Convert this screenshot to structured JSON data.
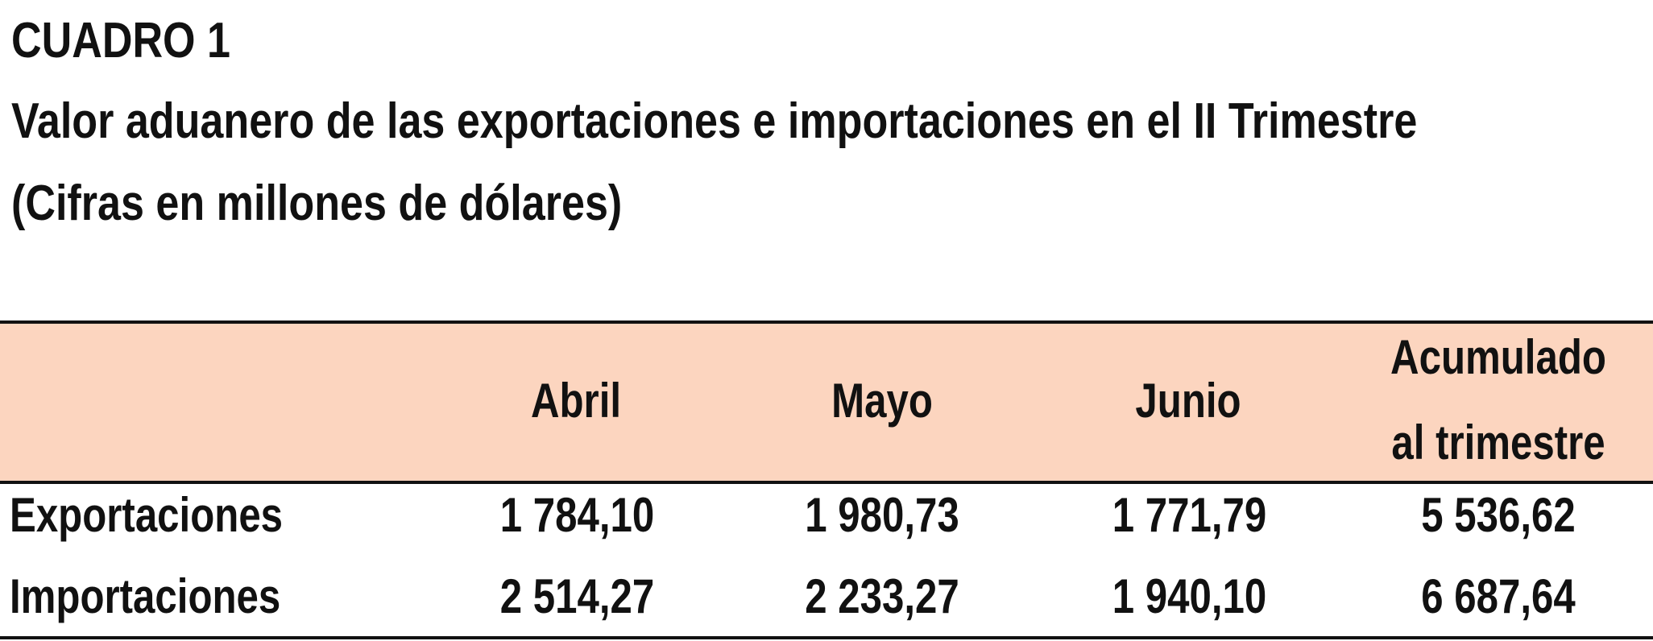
{
  "header": {
    "label": "CUADRO 1",
    "title": "Valor aduanero de las exportaciones e importaciones en el II Trimestre",
    "subtitle": "(Cifras en millones de dólares)"
  },
  "table": {
    "columns": [
      "Abril",
      "Mayo",
      "Junio",
      "Acumulado al trimestre"
    ],
    "last_column_lines": [
      "Acumulado",
      "al trimestre"
    ],
    "rows": [
      {
        "label": "Exportaciones",
        "values": [
          "1 784,10",
          "1 980,73",
          "1 771,79",
          "5 536,62"
        ]
      },
      {
        "label": "Importaciones",
        "values": [
          "2 514,27",
          "2 233,27",
          "1 940,10",
          "6 687,64"
        ]
      }
    ],
    "colors": {
      "header_band": "#fcd5bf",
      "rules": "#111111"
    }
  }
}
